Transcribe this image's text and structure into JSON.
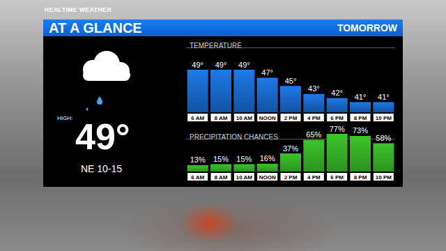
{
  "brand": "REALTIME WEATHER",
  "header": {
    "title": "AT A GLANCE",
    "period": "TOMORROW"
  },
  "summary": {
    "high_label": "HIGH:",
    "high": "49°",
    "wind": "NE 10-15"
  },
  "chart_data": [
    {
      "type": "bar",
      "title": "TEMPERATURE",
      "categories": [
        "6 AM",
        "8 AM",
        "10 AM",
        "NOON",
        "2 PM",
        "4 PM",
        "6 PM",
        "8 PM",
        "10 PM"
      ],
      "values": [
        49,
        49,
        49,
        47,
        45,
        43,
        42,
        41,
        41
      ],
      "value_labels": [
        "49°",
        "49°",
        "49°",
        "47°",
        "45°",
        "43°",
        "42°",
        "41°",
        "41°"
      ],
      "data_labels": true,
      "color": "#1f7ae8",
      "ylim": [
        38.5,
        49
      ],
      "tick_labels": "x",
      "grid": false
    },
    {
      "type": "bar",
      "title": "PRECIPITATION CHANCES",
      "categories": [
        "6 AM",
        "8 AM",
        "10 AM",
        "NOON",
        "2 PM",
        "4 PM",
        "6 PM",
        "8 PM",
        "10 PM"
      ],
      "values": [
        13,
        15,
        15,
        16,
        37,
        65,
        77,
        73,
        58
      ],
      "value_labels": [
        "13%",
        "15%",
        "15%",
        "16%",
        "37%",
        "65%",
        "77%",
        "73%",
        "58%"
      ],
      "data_labels": true,
      "color": "#3cc42a",
      "ylim": [
        0,
        80
      ],
      "tick_labels": "x",
      "grid": false
    }
  ]
}
